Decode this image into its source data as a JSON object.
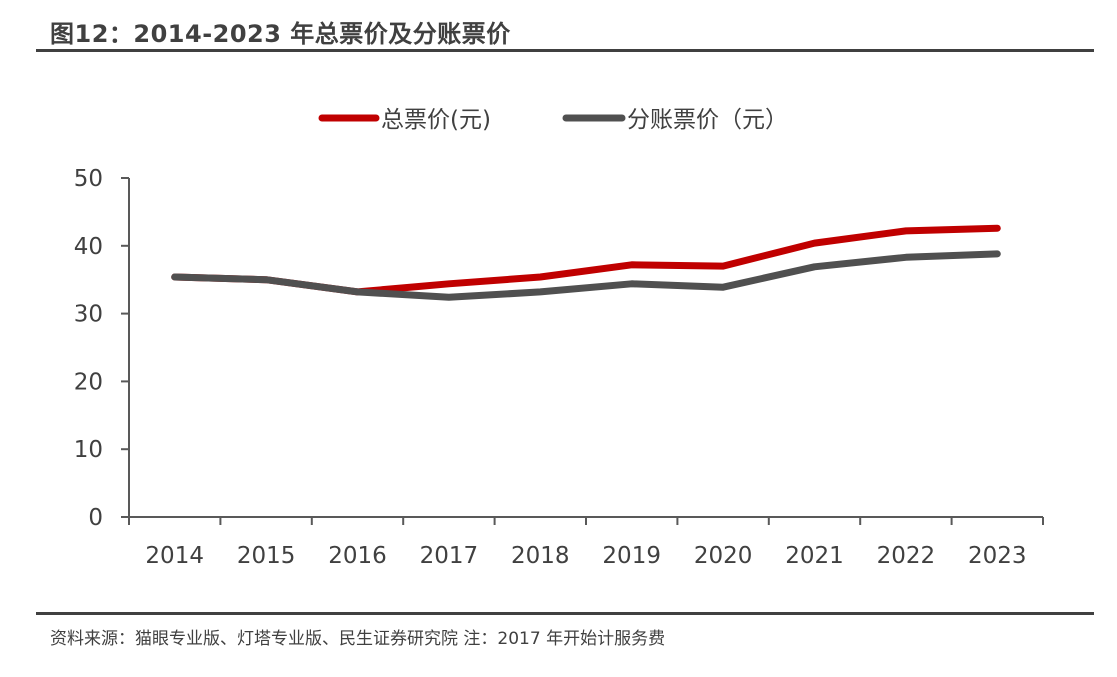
{
  "header": {
    "title": "图12：2014-2023 年总票价及分账票价"
  },
  "footer": {
    "source": "资料来源：猫眼专业版、灯塔专业版、民生证券研究院 注：2017 年开始计服务费"
  },
  "colors": {
    "series_total": "#C00000",
    "series_split": "#505050",
    "axis": "#595959",
    "text": "#404040"
  },
  "chart_data": {
    "type": "line",
    "title": "2014-2023 年总票价及分账票价",
    "xlabel": "",
    "ylabel": "",
    "categories": [
      "2014",
      "2015",
      "2016",
      "2017",
      "2018",
      "2019",
      "2020",
      "2021",
      "2022",
      "2023"
    ],
    "ylim": [
      0,
      50
    ],
    "yticks": [
      0,
      10,
      20,
      30,
      40,
      50
    ],
    "grid": false,
    "legend_position": "top-center",
    "series": [
      {
        "name": "总票价(元)",
        "color": "#C00000",
        "values": [
          35.4,
          35.0,
          33.2,
          34.4,
          35.4,
          37.2,
          37.0,
          40.4,
          42.2,
          42.6
        ]
      },
      {
        "name": "分账票价（元）",
        "color": "#505050",
        "values": [
          35.4,
          35.0,
          33.2,
          32.4,
          33.2,
          34.4,
          33.9,
          36.9,
          38.3,
          38.8
        ]
      }
    ]
  }
}
